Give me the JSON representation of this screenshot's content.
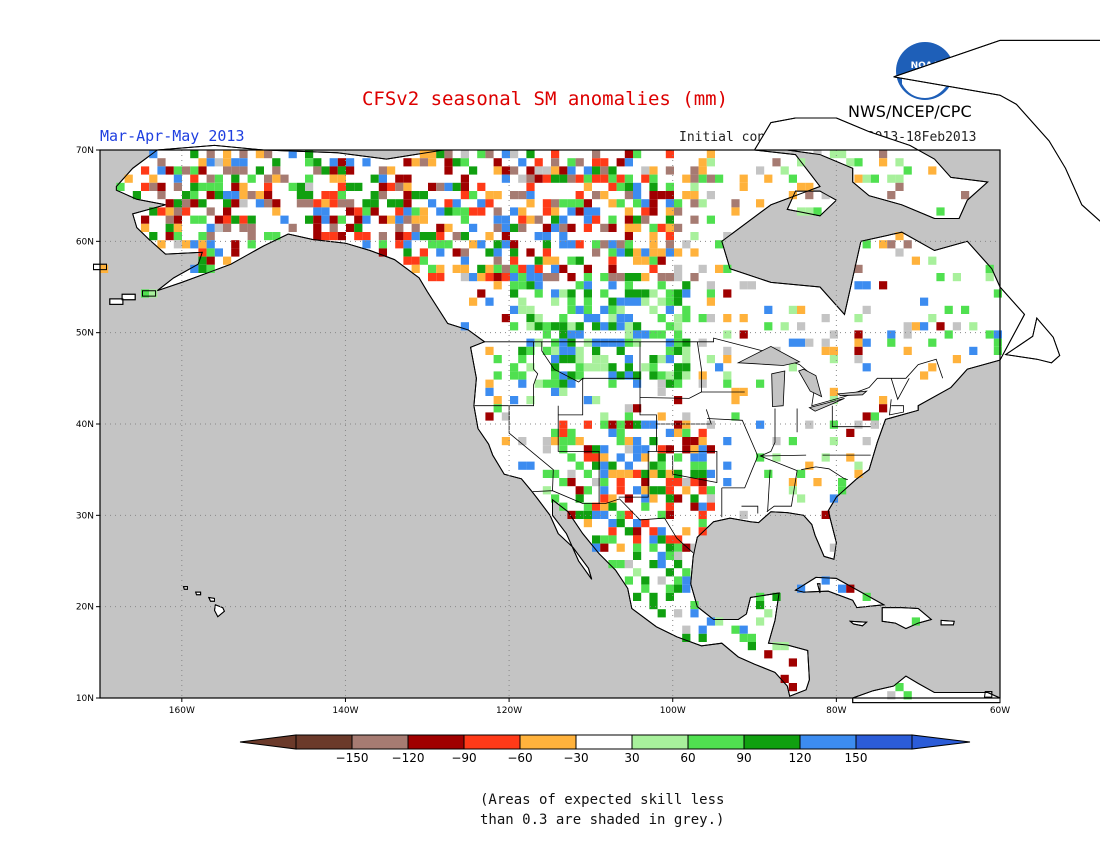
{
  "title": "CFSv2 seasonal SM anomalies (mm)",
  "period": "Mar-Apr-May 2013",
  "initial_conditions": "Initial conditions: 9Feb2013-18Feb2013",
  "organization": "NWS/NCEP/CPC",
  "logo_text": "NOAA",
  "note_line1": "(Areas of expected skill less",
  "note_line2": "than 0.3 are shaded in grey.)",
  "colors": {
    "title": "#dd0000",
    "period": "#1f3fe0",
    "ocean": "#c4c4c4",
    "land": "#ffffff",
    "logo_blue": "#1e5fb8"
  },
  "lat_labels": [
    "10N",
    "20N",
    "30N",
    "40N",
    "50N",
    "60N",
    "70N"
  ],
  "lon_labels": [
    "160W",
    "140W",
    "120W",
    "100W",
    "80W",
    "60W"
  ],
  "legend": {
    "colors": [
      "#6b3a2a",
      "#a67b72",
      "#a00000",
      "#ff3a18",
      "#ffb23c",
      "#ffffff",
      "#a8f09c",
      "#50e050",
      "#10a010",
      "#3c8cf0",
      "#2b5cd8"
    ],
    "labels": [
      "-150",
      "-120",
      "-90",
      "-60",
      "-30",
      "30",
      "60",
      "90",
      "120",
      "150"
    ]
  }
}
